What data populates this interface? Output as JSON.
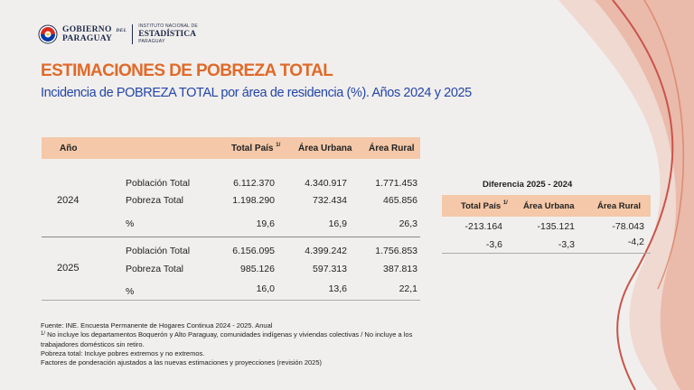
{
  "header": {
    "logo_gobierno": "GOBIERNO",
    "logo_del": "DEL",
    "logo_paraguay": "PARAGUAY",
    "logo_ine_line1": "INSTITUTO NACIONAL DE",
    "logo_ine_line2": "ESTADÍSTICA",
    "logo_ine_line3": "PARAGUAY"
  },
  "title": "ESTIMACIONES DE POBREZA TOTAL",
  "subtitle": "Incidencia de POBREZA TOTAL  por área de residencia (%). Años 2024 y 2025",
  "main_table": {
    "headers": {
      "year": "Año",
      "total": "Total País",
      "total_sup": "1/",
      "urban": "Área Urbana",
      "rural": "Área Rural"
    },
    "years": [
      {
        "year": "2024",
        "rows": [
          {
            "label": "Población Total",
            "total": "6.112.370",
            "urban": "4.340.917",
            "rural": "1.771.453"
          },
          {
            "label": "Pobreza Total",
            "total": "1.198.290",
            "urban": "732.434",
            "rural": "465.856"
          },
          {
            "label": "%",
            "total": "19,6",
            "urban": "16,9",
            "rural": "26,3"
          }
        ]
      },
      {
        "year": "2025",
        "rows": [
          {
            "label": "Población Total",
            "total": "6.156.095",
            "urban": "4.399.242",
            "rural": "1.756.853"
          },
          {
            "label": "Pobreza Total",
            "total": "985.126",
            "urban": "597.313",
            "rural": "387.813"
          },
          {
            "label": "%",
            "total": "16,0",
            "urban": "13,6",
            "rural": "22,1"
          }
        ]
      }
    ]
  },
  "diff_table": {
    "title": "Diferencia 2025 - 2024",
    "headers": {
      "total": "Total País",
      "total_sup": "1/",
      "urban": "Área Urbana",
      "rural": "Área Rural"
    },
    "rows": [
      {
        "total": "-213.164",
        "urban": "-135.121",
        "rural": "-78.043"
      },
      {
        "total": "-3,6",
        "urban": "-3,3",
        "rural": "-4,2"
      }
    ]
  },
  "footnotes": {
    "source": "Fuente: INE. Encuesta Permanente de Hogares Continua 2024  - 2025. Anual",
    "note1_sup": "1/",
    "note1_line1": " No incluye los departamentos Boquerón y Alto Paraguay, comunidades indígenas y viviendas  colectivas / No incluye a los",
    "note1_line2": "trabajadores domésticos sin retiro.",
    "note2": "Pobreza total: Incluye pobres extremos y no extremos.",
    "note3": "Factores de ponderación ajustados a las nuevas estimaciones y proyecciones (revisión 2025)"
  },
  "colors": {
    "title": "#e06a2a",
    "subtitle": "#2346a8",
    "header_fill": "#f4c8a8",
    "ribbon": "#e6a08c"
  }
}
